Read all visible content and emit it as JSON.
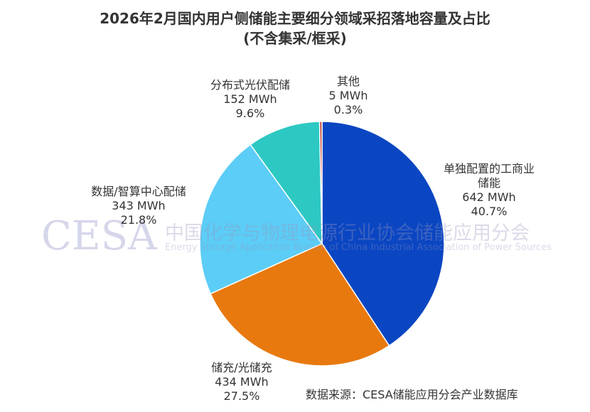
{
  "chart_data": {
    "type": "pie",
    "title": "2026年2月国内用户侧储能主要细分领域采招落地容量及占比",
    "subtitle": "(不含集采/框采)",
    "categories": [
      "单独配置的工商业储能",
      "储充/光储充",
      "数据/智算中心配储",
      "分布式光伏配储",
      "其他"
    ],
    "values": [
      642,
      434,
      343,
      152,
      5
    ],
    "value_labels": [
      "642 MWh",
      "434 MWh",
      "343 MWh",
      "152 MWh",
      "5 MWh"
    ],
    "percents": [
      40.7,
      27.5,
      21.8,
      9.6,
      0.3
    ],
    "percent_labels": [
      "40.7%",
      "27.5%",
      "21.8%",
      "9.6%",
      "0.3%"
    ],
    "colors": [
      "#0b46c2",
      "#e8790f",
      "#5ccdf6",
      "#2ec8c2",
      "#c0392b"
    ],
    "watermark": {
      "logo": "CESA",
      "name": "中国化学与物理电源行业协会储能应用分会",
      "english": "Energy Storage Application Branch of China Industrial Association of Power Sources"
    },
    "source": "数据来源：CESA储能应用分会产业数据库"
  }
}
